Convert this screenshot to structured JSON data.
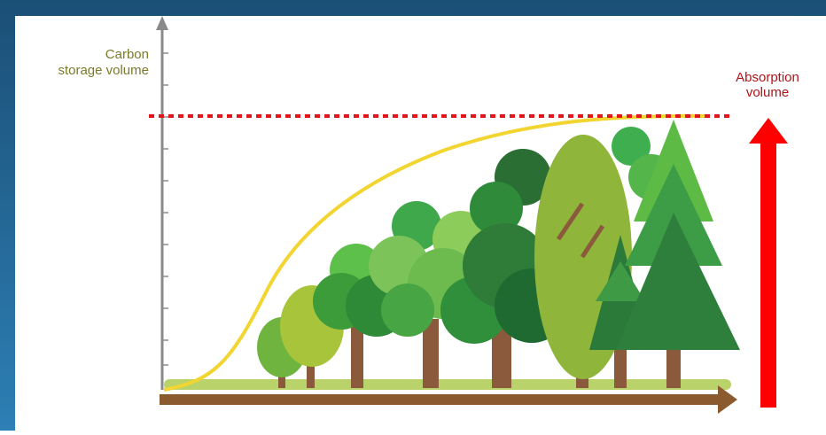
{
  "y_axis_label": [
    "Carbon",
    "storage volume"
  ],
  "absorption_label": [
    "Absorption",
    "volume"
  ]
}
